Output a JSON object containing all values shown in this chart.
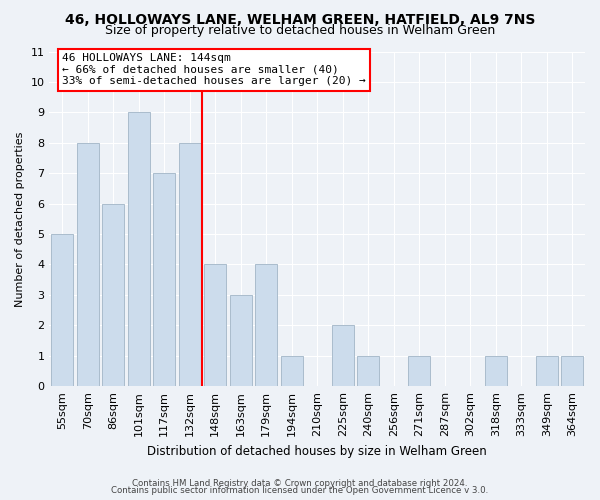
{
  "title": "46, HOLLOWAYS LANE, WELHAM GREEN, HATFIELD, AL9 7NS",
  "subtitle": "Size of property relative to detached houses in Welham Green",
  "xlabel": "Distribution of detached houses by size in Welham Green",
  "ylabel": "Number of detached properties",
  "footer1": "Contains HM Land Registry data © Crown copyright and database right 2024.",
  "footer2": "Contains public sector information licensed under the Open Government Licence v 3.0.",
  "categories": [
    "55sqm",
    "70sqm",
    "86sqm",
    "101sqm",
    "117sqm",
    "132sqm",
    "148sqm",
    "163sqm",
    "179sqm",
    "194sqm",
    "210sqm",
    "225sqm",
    "240sqm",
    "256sqm",
    "271sqm",
    "287sqm",
    "302sqm",
    "318sqm",
    "333sqm",
    "349sqm",
    "364sqm"
  ],
  "values": [
    5,
    8,
    6,
    9,
    7,
    8,
    4,
    3,
    4,
    1,
    0,
    2,
    1,
    0,
    1,
    0,
    0,
    1,
    0,
    1,
    1
  ],
  "bar_color": "#ccdcec",
  "bar_edge_color": "#aabccc",
  "reference_line_index": 6,
  "reference_line_color": "red",
  "annotation_title": "46 HOLLOWAYS LANE: 144sqm",
  "annotation_line1": "← 66% of detached houses are smaller (40)",
  "annotation_line2": "33% of semi-detached houses are larger (20) →",
  "annotation_box_color": "white",
  "annotation_box_edge_color": "red",
  "ylim": [
    0,
    11
  ],
  "yticks": [
    0,
    1,
    2,
    3,
    4,
    5,
    6,
    7,
    8,
    9,
    10,
    11
  ],
  "background_color": "#eef2f7",
  "grid_color": "white",
  "title_fontsize": 10,
  "subtitle_fontsize": 9,
  "annotation_fontsize": 8,
  "axis_fontsize": 8,
  "ylabel_fontsize": 8,
  "xlabel_fontsize": 8.5
}
